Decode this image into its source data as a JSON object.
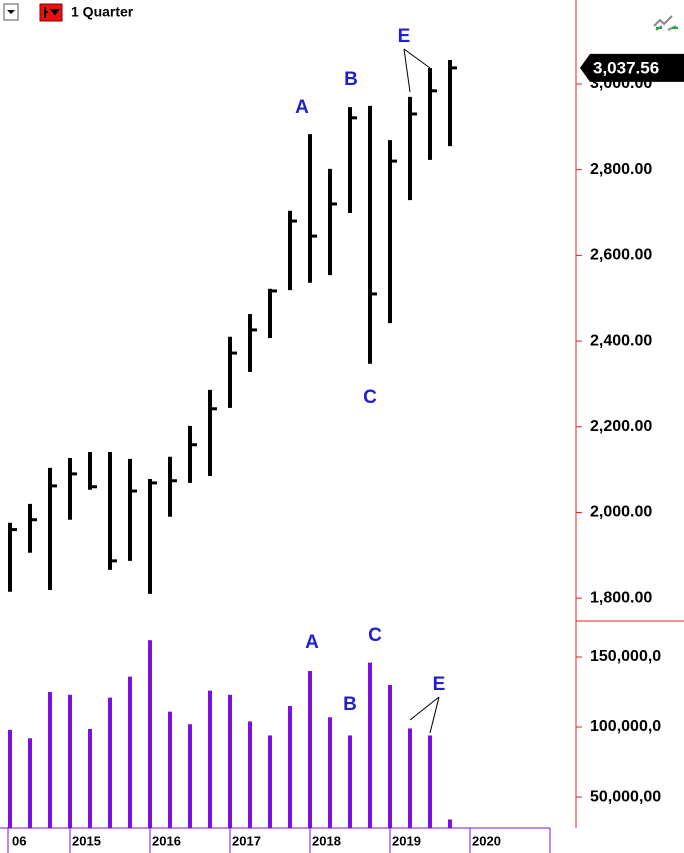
{
  "toolbar": {
    "period": "1 Quarter"
  },
  "chart_data": [
    {
      "type": "ohlc",
      "high": [
        1976,
        2020,
        2104,
        2127,
        2141,
        2141,
        2125,
        2078,
        2130,
        2202,
        2286,
        2410,
        2463,
        2522,
        2704,
        2883,
        2802,
        2946,
        2949,
        2869,
        2970,
        3037,
        3056
      ],
      "low": [
        1815,
        1906,
        1819,
        1983,
        2053,
        1866,
        1887,
        1810,
        1990,
        2069,
        2085,
        2244,
        2328,
        2407,
        2519,
        2536,
        2554,
        2699,
        2347,
        2442,
        2729,
        2823,
        2855
      ],
      "close": [
        1960,
        1983,
        2062,
        2090,
        2060,
        1887,
        2050,
        2069,
        2074,
        2158,
        2242,
        2372,
        2426,
        2517,
        2680,
        2645,
        2720,
        2921,
        2510,
        2820,
        2930,
        2984,
        3037.56
      ],
      "color": "#000000",
      "last_value_label": "3,037.56",
      "ylim": [
        1749,
        3196
      ],
      "yticks": [
        {
          "value": 1800,
          "label": "1,800.00"
        },
        {
          "value": 2000,
          "label": "2,000.00"
        },
        {
          "value": 2200,
          "label": "2,200.00"
        },
        {
          "value": 2400,
          "label": "2,400.00"
        },
        {
          "value": 2600,
          "label": "2,600.00"
        },
        {
          "value": 2800,
          "label": "2,800.00"
        },
        {
          "value": 3000,
          "label": "3,000.00"
        }
      ],
      "annotations": [
        "A",
        "B",
        "C",
        "E"
      ]
    },
    {
      "type": "bar",
      "values": [
        98000000,
        92000000,
        125000000,
        123000000,
        98600000,
        121000000,
        136000000,
        162000000,
        111000000,
        102000000,
        126000000,
        123000000,
        104000000,
        94000000,
        115000000,
        140000000,
        107000000,
        94000000,
        146000000,
        130000000,
        99000000,
        94000000,
        34000000
      ],
      "color": "#7b10e0",
      "ylim": [
        27900000,
        175000000
      ],
      "yticks": [
        {
          "value": 50000000,
          "label": "50,000,00"
        },
        {
          "value": 100000000,
          "label": "100,000,0"
        },
        {
          "value": 150000000,
          "label": "150,000,0"
        }
      ],
      "annotations": [
        "A",
        "C",
        "B",
        "E"
      ],
      "x_tick_labels": [
        "06",
        "2015",
        "2016",
        "2017",
        "2018",
        "2019",
        "2020"
      ]
    }
  ]
}
